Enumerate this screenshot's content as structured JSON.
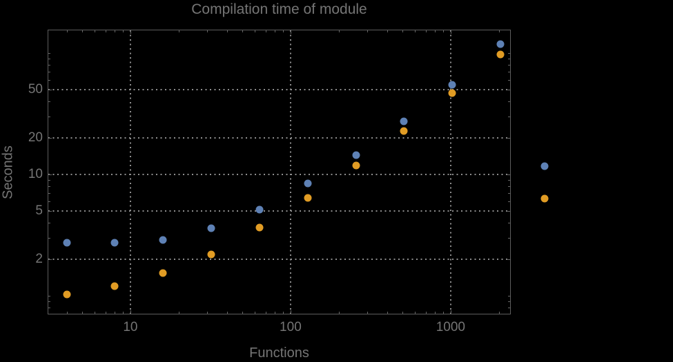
{
  "title": "Compilation time of module",
  "colors": {
    "background": "#000000",
    "frame": "#5e5e5e",
    "tick": "#666666",
    "grid": "#8f8f8f",
    "text": "#757575",
    "series_blue": "#5e81b5",
    "series_orange": "#e19c24"
  },
  "chart_data": {
    "type": "scatter",
    "title": "Compilation time of module",
    "xlabel": "Functions",
    "ylabel": "Seconds",
    "x_scale": "log",
    "y_scale": "log",
    "grid": "dotted lines at labeled ticks only",
    "legend_position": "right, markers only (labels not visible)",
    "x_range": [
      3.04,
      2375
    ],
    "y_range": [
      0.701,
      156
    ],
    "x_ticks_labeled": [
      10,
      100,
      1000
    ],
    "y_ticks_labeled": [
      2,
      5,
      10,
      20,
      50
    ],
    "x": [
      4,
      8,
      16,
      32,
      64,
      128,
      256,
      512,
      1024,
      2048
    ],
    "series": [
      {
        "name": "series-1",
        "color": "#5e81b5",
        "values": [
          2.75,
          2.75,
          2.9,
          3.6,
          5.1,
          8.4,
          14.4,
          27.4,
          54.8,
          118.5
        ]
      },
      {
        "name": "series-2",
        "color": "#e19c24",
        "values": [
          1.03,
          1.2,
          1.54,
          2.2,
          3.65,
          6.4,
          11.9,
          22.8,
          46.8,
          97.4
        ]
      }
    ],
    "legend_markers": [
      {
        "name": "legend-marker-series-1",
        "color": "#5e81b5",
        "cx": 789,
        "cy": 241
      },
      {
        "name": "legend-marker-series-2",
        "color": "#e19c24",
        "cx": 789,
        "cy": 288
      }
    ]
  }
}
